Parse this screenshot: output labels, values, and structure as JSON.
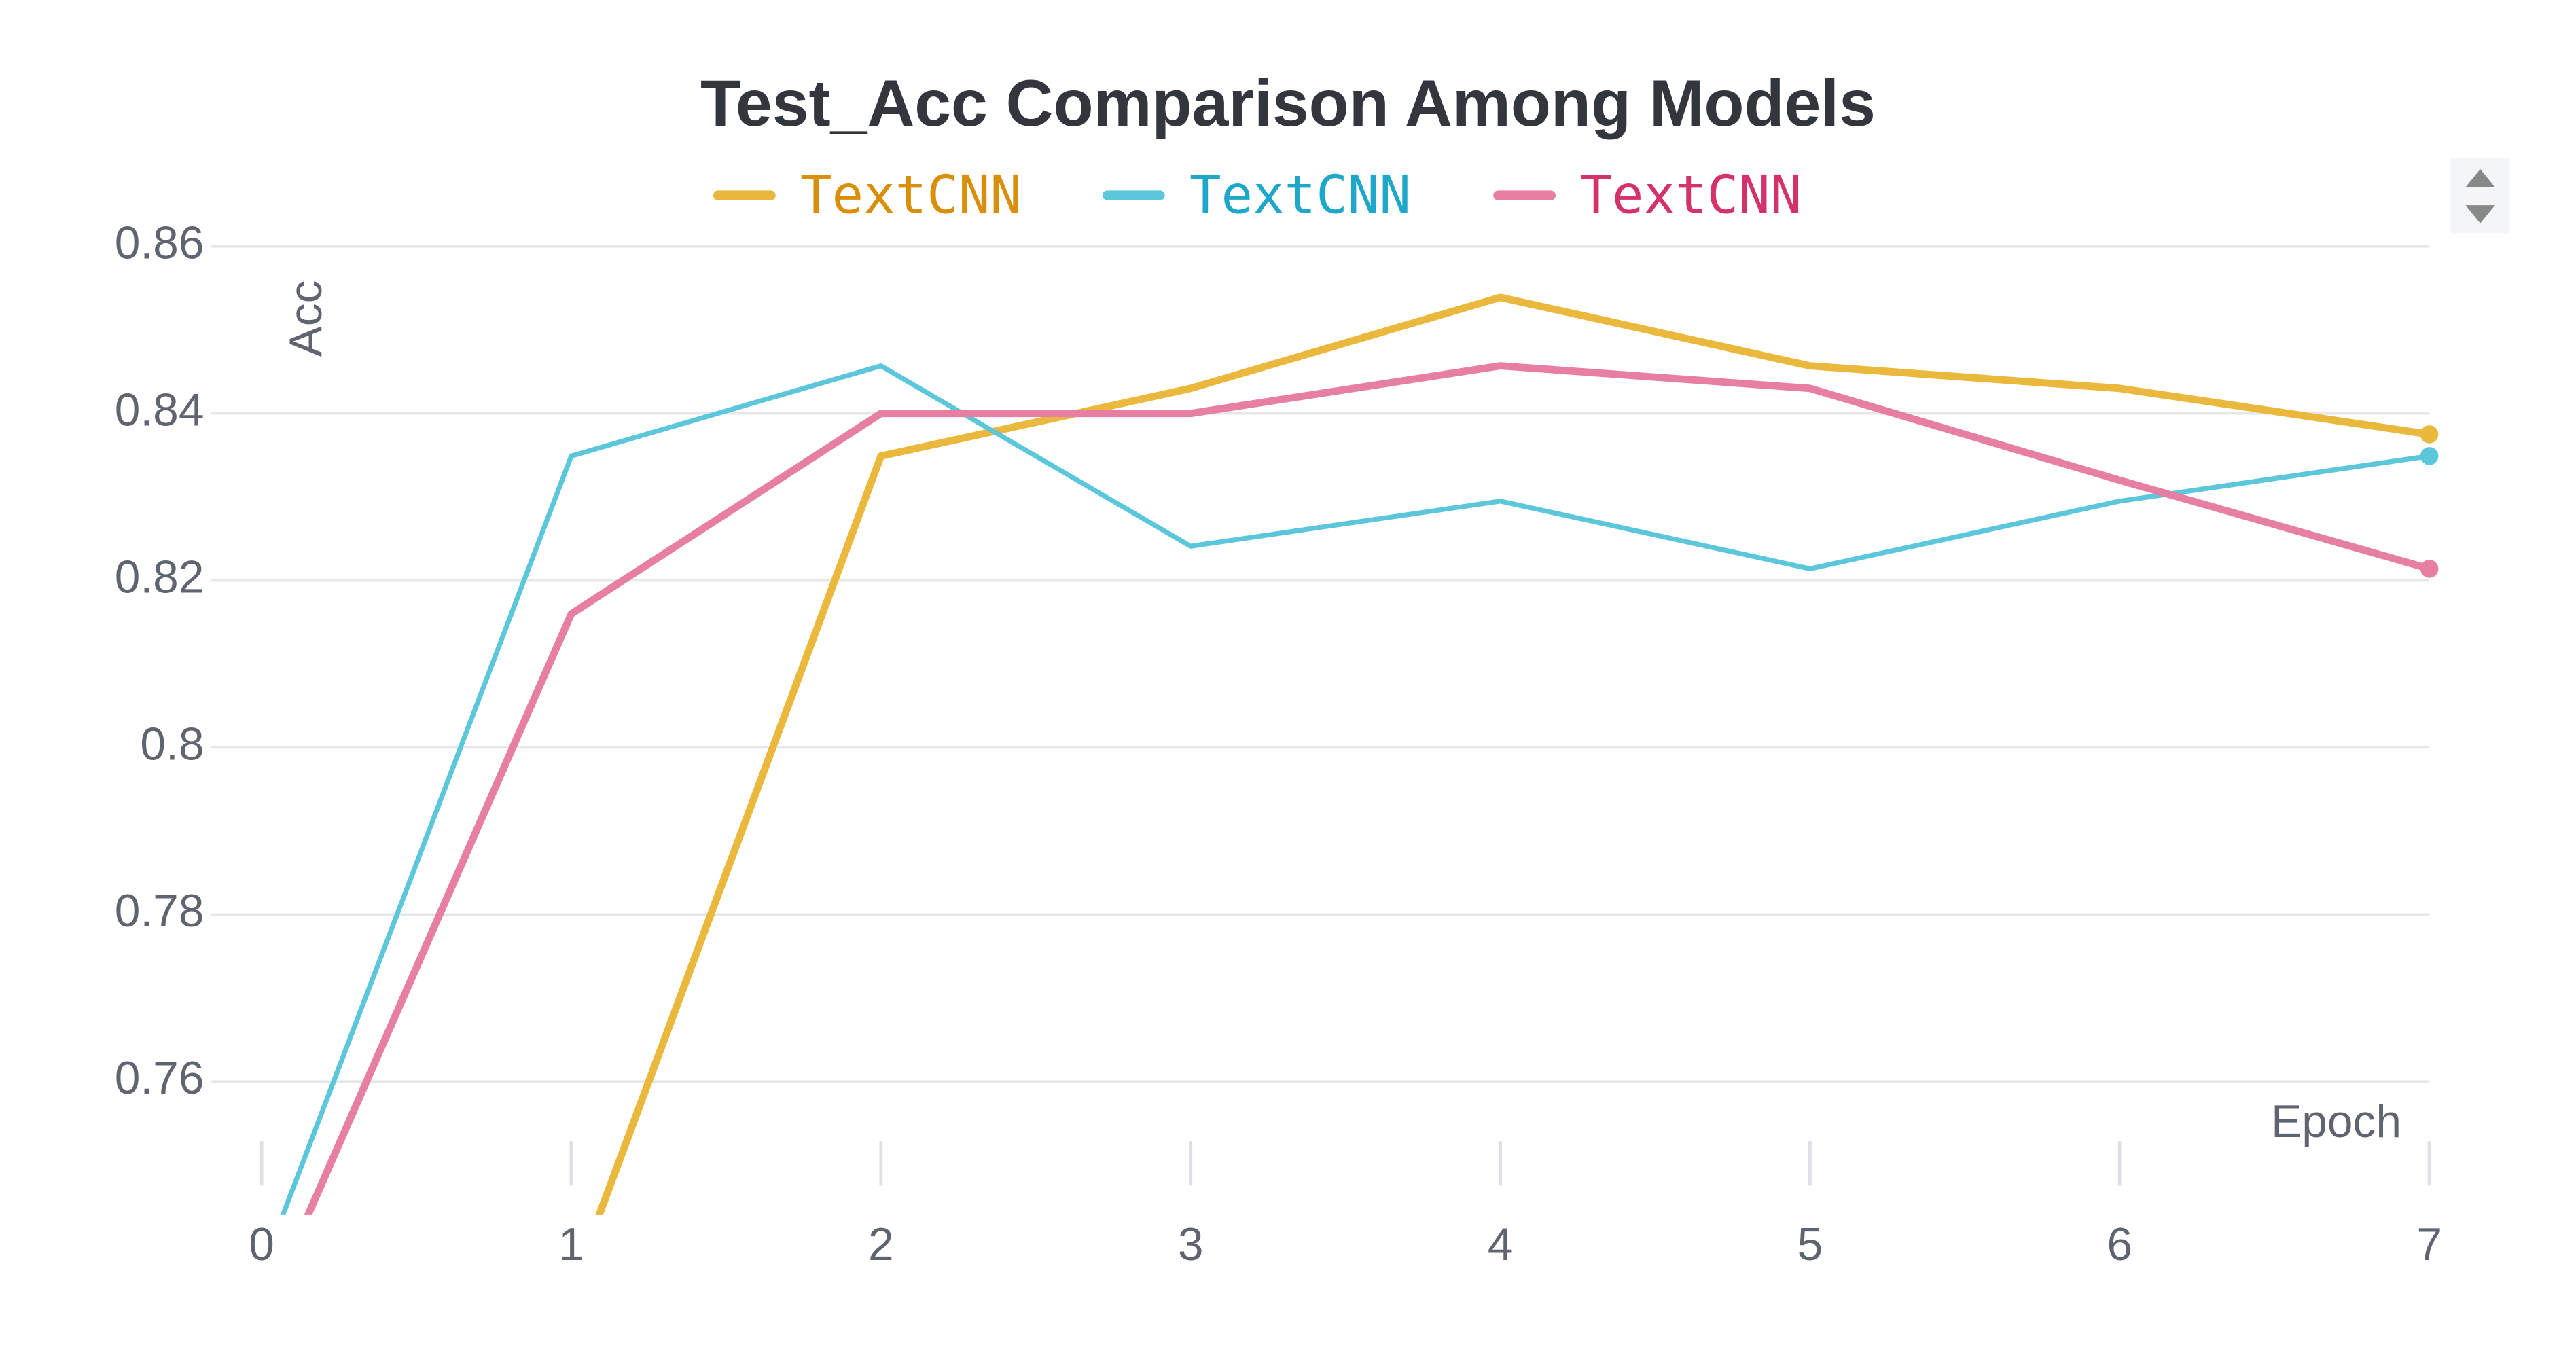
{
  "chart_data": {
    "type": "line",
    "title": "Test_Acc Comparison Among Models",
    "x_label": "Epoch",
    "y_label": "Acc",
    "x": [
      0,
      1,
      2,
      3,
      4,
      5,
      6,
      7
    ],
    "xlim": [
      0,
      7
    ],
    "xticks": [
      0,
      1,
      2,
      3,
      4,
      5,
      6,
      7
    ],
    "ylim": [
      0.744,
      0.861
    ],
    "yticks": [
      0.76,
      0.78,
      0.8,
      0.82,
      0.84,
      0.86
    ],
    "grid": true,
    "series": [
      {
        "name": "TextCNN",
        "color": "#eab83c",
        "label_color": "#d98f0b",
        "values": [
          null,
          0.735,
          0.8349,
          0.843,
          0.8539,
          0.8457,
          0.843,
          0.8375
        ]
      },
      {
        "name": "TextCNN",
        "color": "#5cc6da",
        "label_color": "#1ea7c8",
        "values": [
          0.7373,
          0.8349,
          0.8457,
          0.8241,
          0.8295,
          0.8214,
          0.8295,
          0.8349
        ]
      },
      {
        "name": "TextCNN",
        "color": "#e77fa2",
        "label_color": "#d4326b",
        "values": [
          0.7313,
          0.816,
          0.84,
          0.84,
          0.8457,
          0.843,
          0.832,
          0.8214
        ]
      }
    ]
  }
}
